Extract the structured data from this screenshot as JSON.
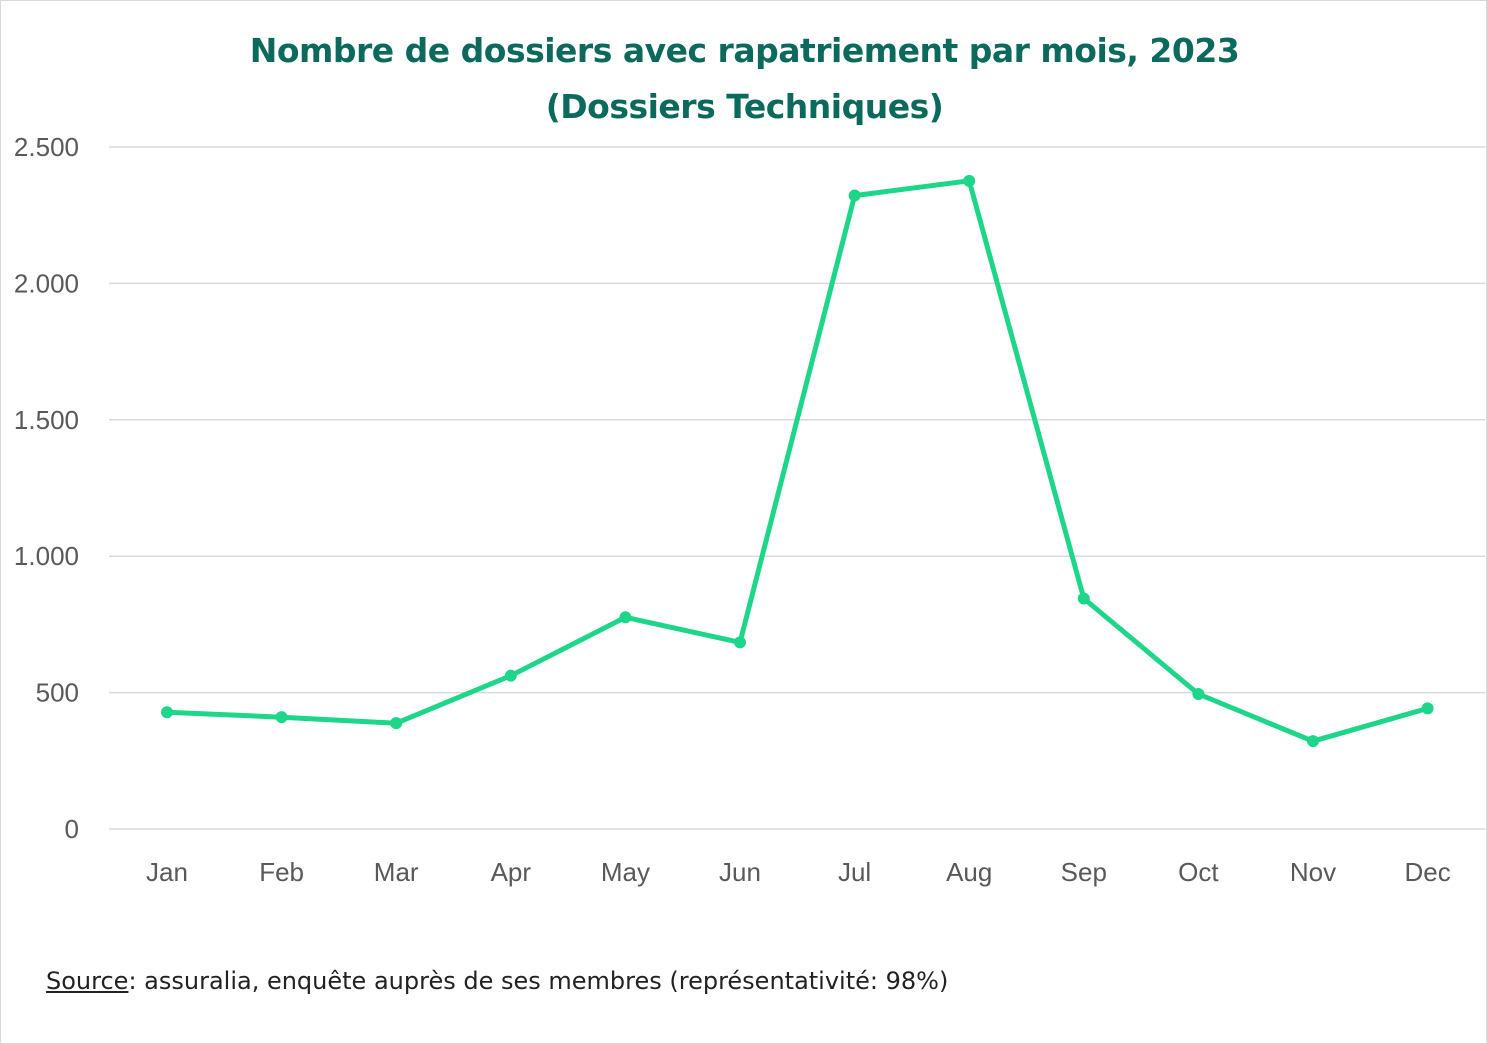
{
  "chart_data": {
    "type": "line",
    "title_line1": "Nombre de dossiers avec rapatriement par mois, 2023",
    "title_line2": "(Dossiers Techniques)",
    "xlabel": "",
    "ylabel": "",
    "categories": [
      "Jan",
      "Feb",
      "Mar",
      "Apr",
      "May",
      "Jun",
      "Jul",
      "Aug",
      "Sep",
      "Oct",
      "Nov",
      "Dec"
    ],
    "series": [
      {
        "values": [
          428,
          410,
          388,
          562,
          776,
          684,
          2322,
          2376,
          845,
          495,
          322,
          442
        ],
        "color": "#1dd68a"
      }
    ],
    "ylim": [
      0,
      2500
    ],
    "yticks": [
      0,
      500,
      1000,
      1500,
      2000,
      2500
    ],
    "ytick_labels": [
      "0",
      "500",
      "1.000",
      "1.500",
      "2.000",
      "2.500"
    ],
    "grid": true,
    "legend": "none"
  },
  "source": {
    "label": "Source",
    "text": ": assuralia, enquête auprès de ses membres (représentativité: 98%)"
  }
}
